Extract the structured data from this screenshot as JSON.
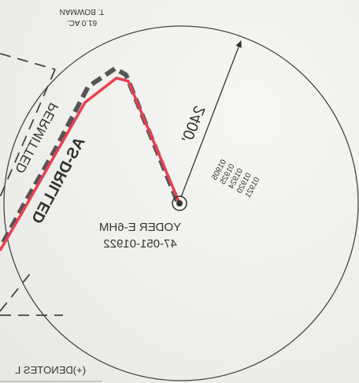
{
  "owner_label": {
    "name": "T. BOWMAN",
    "acres": "61.0 AC."
  },
  "radius_label": "2400'",
  "permitted_label": "PERMITTED",
  "as_drilled_label": "AS-DRILLED",
  "well_label": {
    "name": "YODER E-6HM",
    "api": "47-051-01922"
  },
  "well_numbers": [
    "01905",
    "01925",
    "01924",
    "01920",
    "01921"
  ],
  "legend_fragment": "(+)DENOTES L",
  "colors": {
    "as_drilled": "#e8414e",
    "permitted": "#555555",
    "linework": "#333333"
  },
  "icons": [
    "wellhead-icon",
    "radius-arrow-icon"
  ]
}
